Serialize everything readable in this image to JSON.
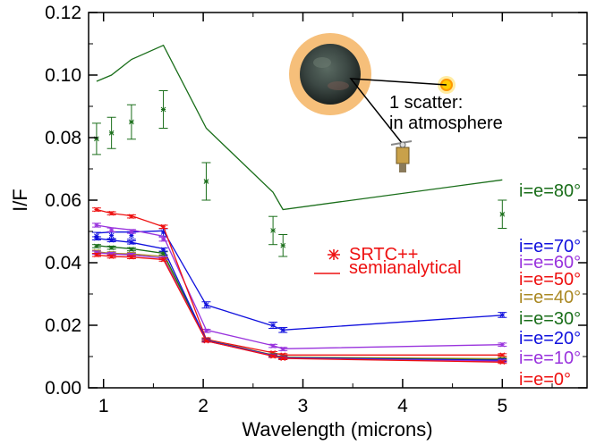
{
  "chart_data": {
    "type": "line",
    "title": "",
    "xlabel": "Wavelength (microns)",
    "ylabel": "I/F",
    "xlim": [
      0.85,
      5.85
    ],
    "ylim": [
      0.0,
      0.12
    ],
    "xticks": [
      1,
      2,
      3,
      4,
      5
    ],
    "yticks": [
      0.0,
      0.02,
      0.04,
      0.06,
      0.08,
      0.1,
      0.12
    ],
    "ytick_labels": [
      "0.00",
      "0.02",
      "0.04",
      "0.06",
      "0.08",
      "0.10",
      "0.12"
    ],
    "grid": false,
    "legend_position": "center-right",
    "legend": [
      {
        "label": "SRTC++",
        "color": "#ee1111",
        "marker": "asterisk"
      },
      {
        "label": "semianalytical",
        "color": "#ee1111",
        "marker": "line"
      }
    ],
    "annotation": {
      "text_line1": "1 scatter:",
      "text_line2": "in atmosphere"
    },
    "series": [
      {
        "name": "i=e=80°",
        "color": "#1a6e1a",
        "x": [
          0.93,
          1.08,
          1.28,
          1.6,
          2.03,
          2.7,
          2.8,
          5.0
        ],
        "model": [
          0.098,
          0.1,
          0.105,
          0.1095,
          0.083,
          0.0625,
          0.057,
          0.0665
        ],
        "points": [
          0.0796,
          0.0815,
          0.085,
          0.089,
          0.066,
          0.0503,
          0.0455,
          0.0555
        ],
        "errors": [
          0.005,
          0.005,
          0.0055,
          0.006,
          0.006,
          0.0045,
          0.0035,
          0.0045
        ]
      },
      {
        "name": "i=e=70°",
        "color": "#1111dd",
        "x": [
          0.93,
          1.08,
          1.28,
          1.6,
          2.03,
          2.7,
          2.8,
          5.0
        ],
        "model": [
          0.0495,
          0.0498,
          0.0498,
          0.0502,
          0.0265,
          0.0198,
          0.0185,
          0.0232
        ],
        "points": [
          0.0485,
          0.0487,
          0.0487,
          0.0497,
          0.0265,
          0.02,
          0.0185,
          0.0233
        ],
        "errors": [
          0.0012,
          0.0012,
          0.0012,
          0.0012,
          0.001,
          0.001,
          0.0008,
          0.0008
        ]
      },
      {
        "name": "i=e=60°",
        "color": "#9933dd",
        "x": [
          0.93,
          1.08,
          1.28,
          1.6,
          2.03,
          2.7,
          2.8,
          5.0
        ],
        "model": [
          0.052,
          0.0512,
          0.0505,
          0.0485,
          0.0185,
          0.0135,
          0.0125,
          0.0138
        ],
        "points": [
          0.052,
          0.0505,
          0.05,
          0.0475,
          0.0182,
          0.0134,
          0.0124,
          0.0138
        ],
        "errors": [
          0.0006,
          0.0006,
          0.0006,
          0.0006,
          0.0005,
          0.0005,
          0.0005,
          0.0005
        ]
      },
      {
        "name": "i=e=50°",
        "color": "#ee1111",
        "x": [
          0.93,
          1.08,
          1.28,
          1.6,
          2.03,
          2.7,
          2.8,
          5.0
        ],
        "model": [
          0.057,
          0.0558,
          0.055,
          0.0515,
          0.0155,
          0.0112,
          0.0105,
          0.0105
        ],
        "points": [
          0.057,
          0.0558,
          0.0548,
          0.0515,
          0.0155,
          0.0112,
          0.0105,
          0.0105
        ],
        "errors": [
          0.0005,
          0.0005,
          0.0005,
          0.0005,
          0.0005,
          0.0004,
          0.0004,
          0.0004
        ]
      },
      {
        "name": "i=e=40°",
        "color": "#aa8822",
        "x": [
          0.93,
          1.08,
          1.28,
          1.6,
          2.03,
          2.7,
          2.8,
          5.0
        ],
        "model": [
          0.0435,
          0.043,
          0.0428,
          0.042,
          0.0153,
          0.0105,
          0.0098,
          0.0093
        ],
        "points": [
          0.0435,
          0.043,
          0.0428,
          0.042,
          0.0153,
          0.0105,
          0.0098,
          0.0093
        ],
        "errors": [
          0.0005,
          0.0005,
          0.0005,
          0.0005,
          0.0004,
          0.0004,
          0.0004,
          0.0004
        ]
      },
      {
        "name": "i=e=30°",
        "color": "#1a6e1a",
        "x": [
          0.93,
          1.08,
          1.28,
          1.6,
          2.03,
          2.7,
          2.8,
          5.0
        ],
        "model": [
          0.0455,
          0.045,
          0.0445,
          0.043,
          0.0152,
          0.0104,
          0.0097,
          0.009
        ],
        "points": [
          0.0453,
          0.0448,
          0.0443,
          0.043,
          0.0152,
          0.0104,
          0.0097,
          0.009
        ],
        "errors": [
          0.0005,
          0.0005,
          0.0005,
          0.0005,
          0.0004,
          0.0004,
          0.0004,
          0.0004
        ]
      },
      {
        "name": "i=e=20°",
        "color": "#1111dd",
        "x": [
          0.93,
          1.08,
          1.28,
          1.6,
          2.03,
          2.7,
          2.8,
          5.0
        ],
        "model": [
          0.0478,
          0.0472,
          0.0465,
          0.0445,
          0.0152,
          0.0103,
          0.0096,
          0.0088
        ],
        "points": [
          0.0478,
          0.0472,
          0.0465,
          0.0442,
          0.0152,
          0.0103,
          0.0096,
          0.0088
        ],
        "errors": [
          0.0005,
          0.0005,
          0.0005,
          0.0005,
          0.0004,
          0.0004,
          0.0004,
          0.0004
        ]
      },
      {
        "name": "i=e=10°",
        "color": "#9933dd",
        "x": [
          0.93,
          1.08,
          1.28,
          1.6,
          2.03,
          2.7,
          2.8,
          5.0
        ],
        "model": [
          0.0432,
          0.0428,
          0.0425,
          0.0415,
          0.015,
          0.0102,
          0.0095,
          0.0085
        ],
        "points": [
          0.0432,
          0.0428,
          0.0425,
          0.0415,
          0.015,
          0.0102,
          0.0095,
          0.0085
        ],
        "errors": [
          0.0005,
          0.0005,
          0.0005,
          0.0005,
          0.0004,
          0.0004,
          0.0004,
          0.0004
        ]
      },
      {
        "name": "i=e=0°",
        "color": "#ee1111",
        "x": [
          0.93,
          1.08,
          1.28,
          1.6,
          2.03,
          2.7,
          2.8,
          5.0
        ],
        "model": [
          0.0425,
          0.042,
          0.0418,
          0.041,
          0.015,
          0.0101,
          0.0094,
          0.0082
        ],
        "points": [
          0.0425,
          0.042,
          0.0418,
          0.041,
          0.015,
          0.0101,
          0.0094,
          0.0082
        ],
        "errors": [
          0.0005,
          0.0005,
          0.0005,
          0.0005,
          0.0004,
          0.0004,
          0.0004,
          0.0004
        ]
      }
    ]
  }
}
